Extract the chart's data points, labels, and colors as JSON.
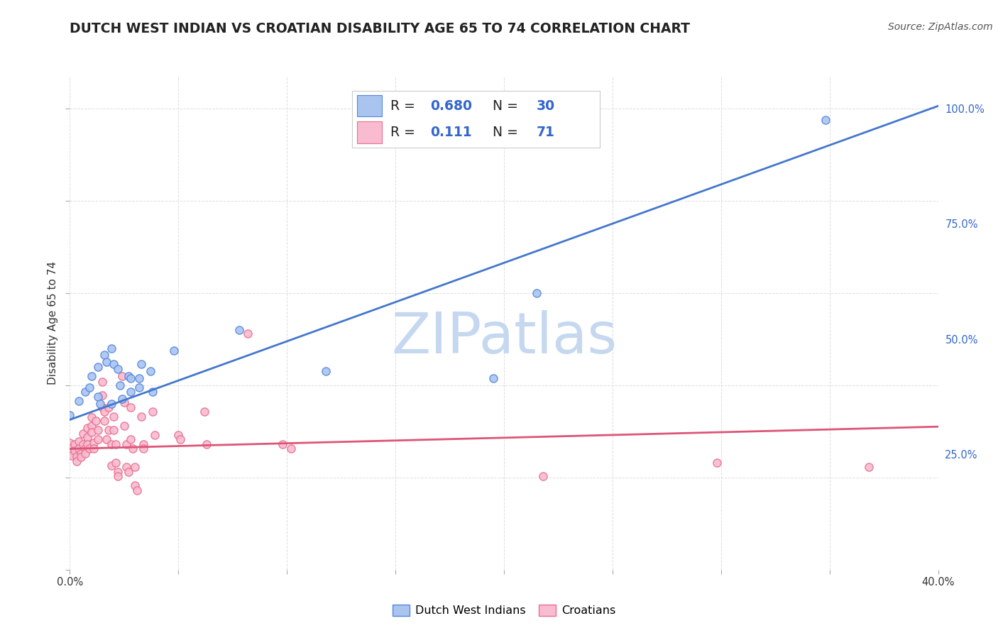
{
  "title": "DUTCH WEST INDIAN VS CROATIAN DISABILITY AGE 65 TO 74 CORRELATION CHART",
  "source": "Source: ZipAtlas.com",
  "ylabel": "Disability Age 65 to 74",
  "x_min": 0.0,
  "x_max": 0.4,
  "y_min": 0.0,
  "y_max": 1.07,
  "y_ticks_right": [
    0.25,
    0.5,
    0.75,
    1.0
  ],
  "y_tick_labels_right": [
    "25.0%",
    "50.0%",
    "75.0%",
    "100.0%"
  ],
  "blue_color": "#aac4f0",
  "blue_edge_color": "#5588dd",
  "blue_line_color": "#4477cc",
  "pink_color": "#f8bbd0",
  "pink_edge_color": "#e87090",
  "pink_line_color": "#dd5577",
  "legend_value_color": "#3366cc",
  "R_blue": 0.68,
  "N_blue": 30,
  "R_pink": 0.111,
  "N_pink": 71,
  "watermark_text": "ZIPatlas",
  "watermark_color": "#c5d8f0",
  "dutch_west_indian_points": [
    [
      0.0,
      0.335
    ],
    [
      0.004,
      0.365
    ],
    [
      0.007,
      0.385
    ],
    [
      0.009,
      0.395
    ],
    [
      0.01,
      0.42
    ],
    [
      0.013,
      0.44
    ],
    [
      0.013,
      0.375
    ],
    [
      0.014,
      0.36
    ],
    [
      0.016,
      0.465
    ],
    [
      0.017,
      0.45
    ],
    [
      0.019,
      0.48
    ],
    [
      0.019,
      0.36
    ],
    [
      0.02,
      0.445
    ],
    [
      0.022,
      0.435
    ],
    [
      0.023,
      0.4
    ],
    [
      0.024,
      0.37
    ],
    [
      0.027,
      0.42
    ],
    [
      0.028,
      0.415
    ],
    [
      0.028,
      0.385
    ],
    [
      0.032,
      0.415
    ],
    [
      0.032,
      0.395
    ],
    [
      0.033,
      0.445
    ],
    [
      0.037,
      0.43
    ],
    [
      0.038,
      0.385
    ],
    [
      0.048,
      0.475
    ],
    [
      0.078,
      0.52
    ],
    [
      0.118,
      0.43
    ],
    [
      0.195,
      0.415
    ],
    [
      0.215,
      0.6
    ],
    [
      0.348,
      0.975
    ]
  ],
  "croatian_points": [
    [
      0.0,
      0.275
    ],
    [
      0.0,
      0.262
    ],
    [
      0.001,
      0.255
    ],
    [
      0.001,
      0.248
    ],
    [
      0.002,
      0.272
    ],
    [
      0.002,
      0.258
    ],
    [
      0.003,
      0.245
    ],
    [
      0.003,
      0.235
    ],
    [
      0.004,
      0.278
    ],
    [
      0.004,
      0.262
    ],
    [
      0.005,
      0.252
    ],
    [
      0.005,
      0.244
    ],
    [
      0.006,
      0.295
    ],
    [
      0.006,
      0.272
    ],
    [
      0.007,
      0.262
    ],
    [
      0.007,
      0.252
    ],
    [
      0.008,
      0.308
    ],
    [
      0.008,
      0.288
    ],
    [
      0.008,
      0.272
    ],
    [
      0.009,
      0.262
    ],
    [
      0.01,
      0.33
    ],
    [
      0.01,
      0.312
    ],
    [
      0.01,
      0.298
    ],
    [
      0.011,
      0.275
    ],
    [
      0.011,
      0.262
    ],
    [
      0.012,
      0.322
    ],
    [
      0.013,
      0.302
    ],
    [
      0.013,
      0.282
    ],
    [
      0.015,
      0.408
    ],
    [
      0.015,
      0.378
    ],
    [
      0.015,
      0.352
    ],
    [
      0.016,
      0.342
    ],
    [
      0.016,
      0.322
    ],
    [
      0.017,
      0.282
    ],
    [
      0.018,
      0.352
    ],
    [
      0.018,
      0.302
    ],
    [
      0.019,
      0.272
    ],
    [
      0.019,
      0.225
    ],
    [
      0.02,
      0.332
    ],
    [
      0.02,
      0.302
    ],
    [
      0.021,
      0.272
    ],
    [
      0.021,
      0.232
    ],
    [
      0.022,
      0.212
    ],
    [
      0.022,
      0.202
    ],
    [
      0.024,
      0.42
    ],
    [
      0.025,
      0.362
    ],
    [
      0.025,
      0.312
    ],
    [
      0.026,
      0.272
    ],
    [
      0.026,
      0.222
    ],
    [
      0.027,
      0.212
    ],
    [
      0.028,
      0.352
    ],
    [
      0.028,
      0.282
    ],
    [
      0.029,
      0.262
    ],
    [
      0.03,
      0.222
    ],
    [
      0.03,
      0.182
    ],
    [
      0.031,
      0.172
    ],
    [
      0.033,
      0.332
    ],
    [
      0.034,
      0.272
    ],
    [
      0.034,
      0.262
    ],
    [
      0.038,
      0.342
    ],
    [
      0.039,
      0.292
    ],
    [
      0.05,
      0.292
    ],
    [
      0.051,
      0.282
    ],
    [
      0.062,
      0.342
    ],
    [
      0.063,
      0.272
    ],
    [
      0.082,
      0.512
    ],
    [
      0.098,
      0.272
    ],
    [
      0.102,
      0.262
    ],
    [
      0.218,
      0.202
    ],
    [
      0.298,
      0.232
    ],
    [
      0.368,
      0.222
    ]
  ],
  "blue_trendline": [
    [
      0.0,
      0.325
    ],
    [
      0.4,
      1.005
    ]
  ],
  "pink_trendline": [
    [
      0.0,
      0.262
    ],
    [
      0.4,
      0.31
    ]
  ],
  "background_color": "#ffffff",
  "grid_color": "#dddddd",
  "title_fontsize": 13.5,
  "source_fontsize": 10,
  "ylabel_fontsize": 11,
  "tick_fontsize": 10.5,
  "legend_fontsize": 13.5
}
